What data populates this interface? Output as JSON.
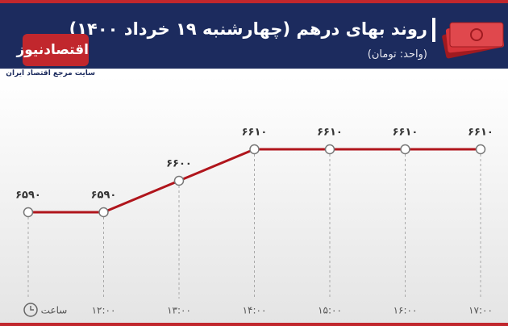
{
  "brand": {
    "name": "اقتصادنیوز",
    "tagline": "سایت مرجع اقتصاد ایران"
  },
  "chart_data": {
    "type": "line",
    "title": "روند بهای درهم (چهارشنبه ۱۹ خرداد ۱۴۰۰)",
    "subtitle": "(واحد: تومان)",
    "x_label": "ساعت",
    "categories": [
      null,
      "۱۲:۰۰",
      "۱۳:۰۰",
      "۱۴:۰۰",
      "۱۵:۰۰",
      "۱۶:۰۰",
      "۱۷:۰۰"
    ],
    "values": [
      6590,
      6590,
      6600,
      6610,
      6610,
      6610,
      6610
    ],
    "value_labels": [
      "۶۵۹۰",
      "۶۵۹۰",
      "۶۶۰۰",
      "۶۶۱۰",
      "۶۶۱۰",
      "۶۶۱۰",
      "۶۶۱۰"
    ],
    "color": "#b0151c",
    "grid": true
  }
}
